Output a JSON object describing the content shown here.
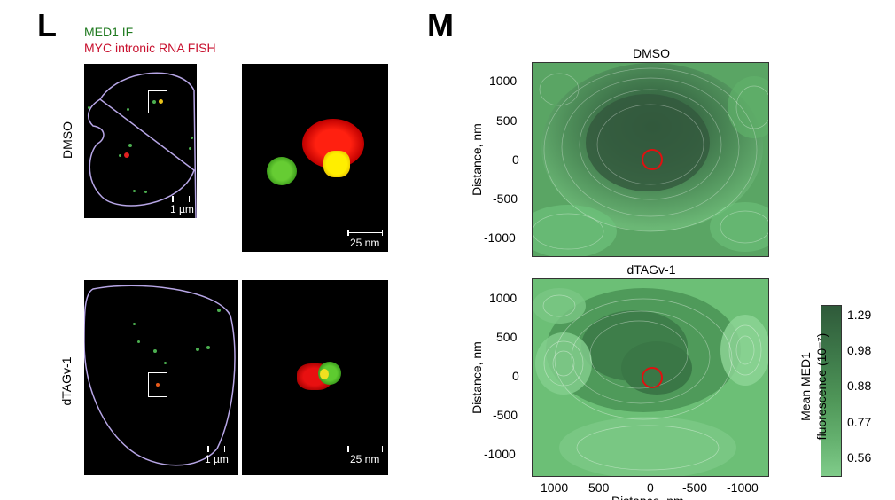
{
  "panel_L": {
    "letter": "L",
    "legend_line1": "MED1 IF",
    "legend_line2": "MYC intronic RNA FISH",
    "row_top_label": "DMSO",
    "row_bottom_label": "dTAGv-1",
    "scale_large": "1 µm",
    "scale_zoom": "25 nm"
  },
  "panel_M": {
    "letter": "M",
    "title_top": "DMSO",
    "title_bottom": "dTAGv-1",
    "ylabel": "Distance, nm",
    "xlabel": "Distance, nm",
    "yticks": [
      "1000",
      "500",
      "0",
      "-500",
      "-1000"
    ],
    "xticks": [
      "1000",
      "500",
      "0",
      "-500",
      "-1000"
    ],
    "colorbar": {
      "label_line1": "Mean MED1",
      "label_line2": "fluorescence (10⁻⁷)",
      "ticks": [
        "1.29",
        "0.98",
        "0.88",
        "0.77",
        "0.56"
      ]
    }
  },
  "chart_data": {
    "type": "heatmap",
    "series": [
      {
        "name": "DMSO",
        "center_x": 0,
        "center_y": 0
      },
      {
        "name": "dTAGv-1",
        "center_x": 0,
        "center_y": 0
      }
    ],
    "xlim": [
      1250,
      -1250
    ],
    "ylim": [
      -1250,
      1250
    ],
    "colorbar_range": [
      0.56,
      1.29
    ]
  }
}
